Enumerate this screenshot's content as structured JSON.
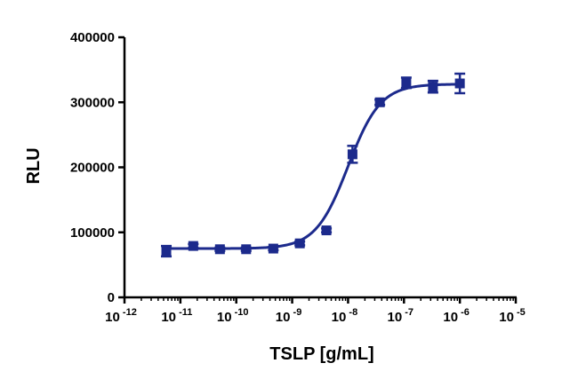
{
  "chart_data": {
    "type": "scatter",
    "xlabel": "TSLP [g/mL]",
    "ylabel": "RLU",
    "x_scale": "log10",
    "xlim": [
      1e-12,
      1e-05
    ],
    "ylim": [
      0,
      400000
    ],
    "x_ticks": [
      {
        "base": "10",
        "exp": "-12"
      },
      {
        "base": "10",
        "exp": "-11"
      },
      {
        "base": "10",
        "exp": "-10"
      },
      {
        "base": "10",
        "exp": "-9"
      },
      {
        "base": "10",
        "exp": "-8"
      },
      {
        "base": "10",
        "exp": "-7"
      },
      {
        "base": "10",
        "exp": "-6"
      },
      {
        "base": "10",
        "exp": "-5"
      }
    ],
    "y_ticks": [
      "0",
      "100000",
      "200000",
      "300000",
      "400000"
    ],
    "grid": false,
    "series": [
      {
        "color": "#1c2a8c",
        "marker": "square",
        "x": [
          5.6e-12,
          1.7e-11,
          5.1e-11,
          1.5e-10,
          4.6e-10,
          1.37e-09,
          4.1e-09,
          1.2e-08,
          3.7e-08,
          1.1e-07,
          3.3e-07,
          1e-06
        ],
        "y": [
          71000,
          79000,
          74000,
          74000,
          75000,
          83000,
          103000,
          220000,
          300000,
          330000,
          324000,
          329000
        ],
        "err": [
          8000,
          3000,
          2500,
          2500,
          2500,
          3000,
          3000,
          13000,
          4000,
          8000,
          9000,
          15000
        ]
      }
    ],
    "fit_curve": {
      "type": "4PL",
      "color": "#1c2a8c",
      "bottom": 75000,
      "top": 328000,
      "logEC50": -8.0,
      "hill": 1.5,
      "x_range": [
        5.6e-12,
        1e-06
      ]
    }
  }
}
